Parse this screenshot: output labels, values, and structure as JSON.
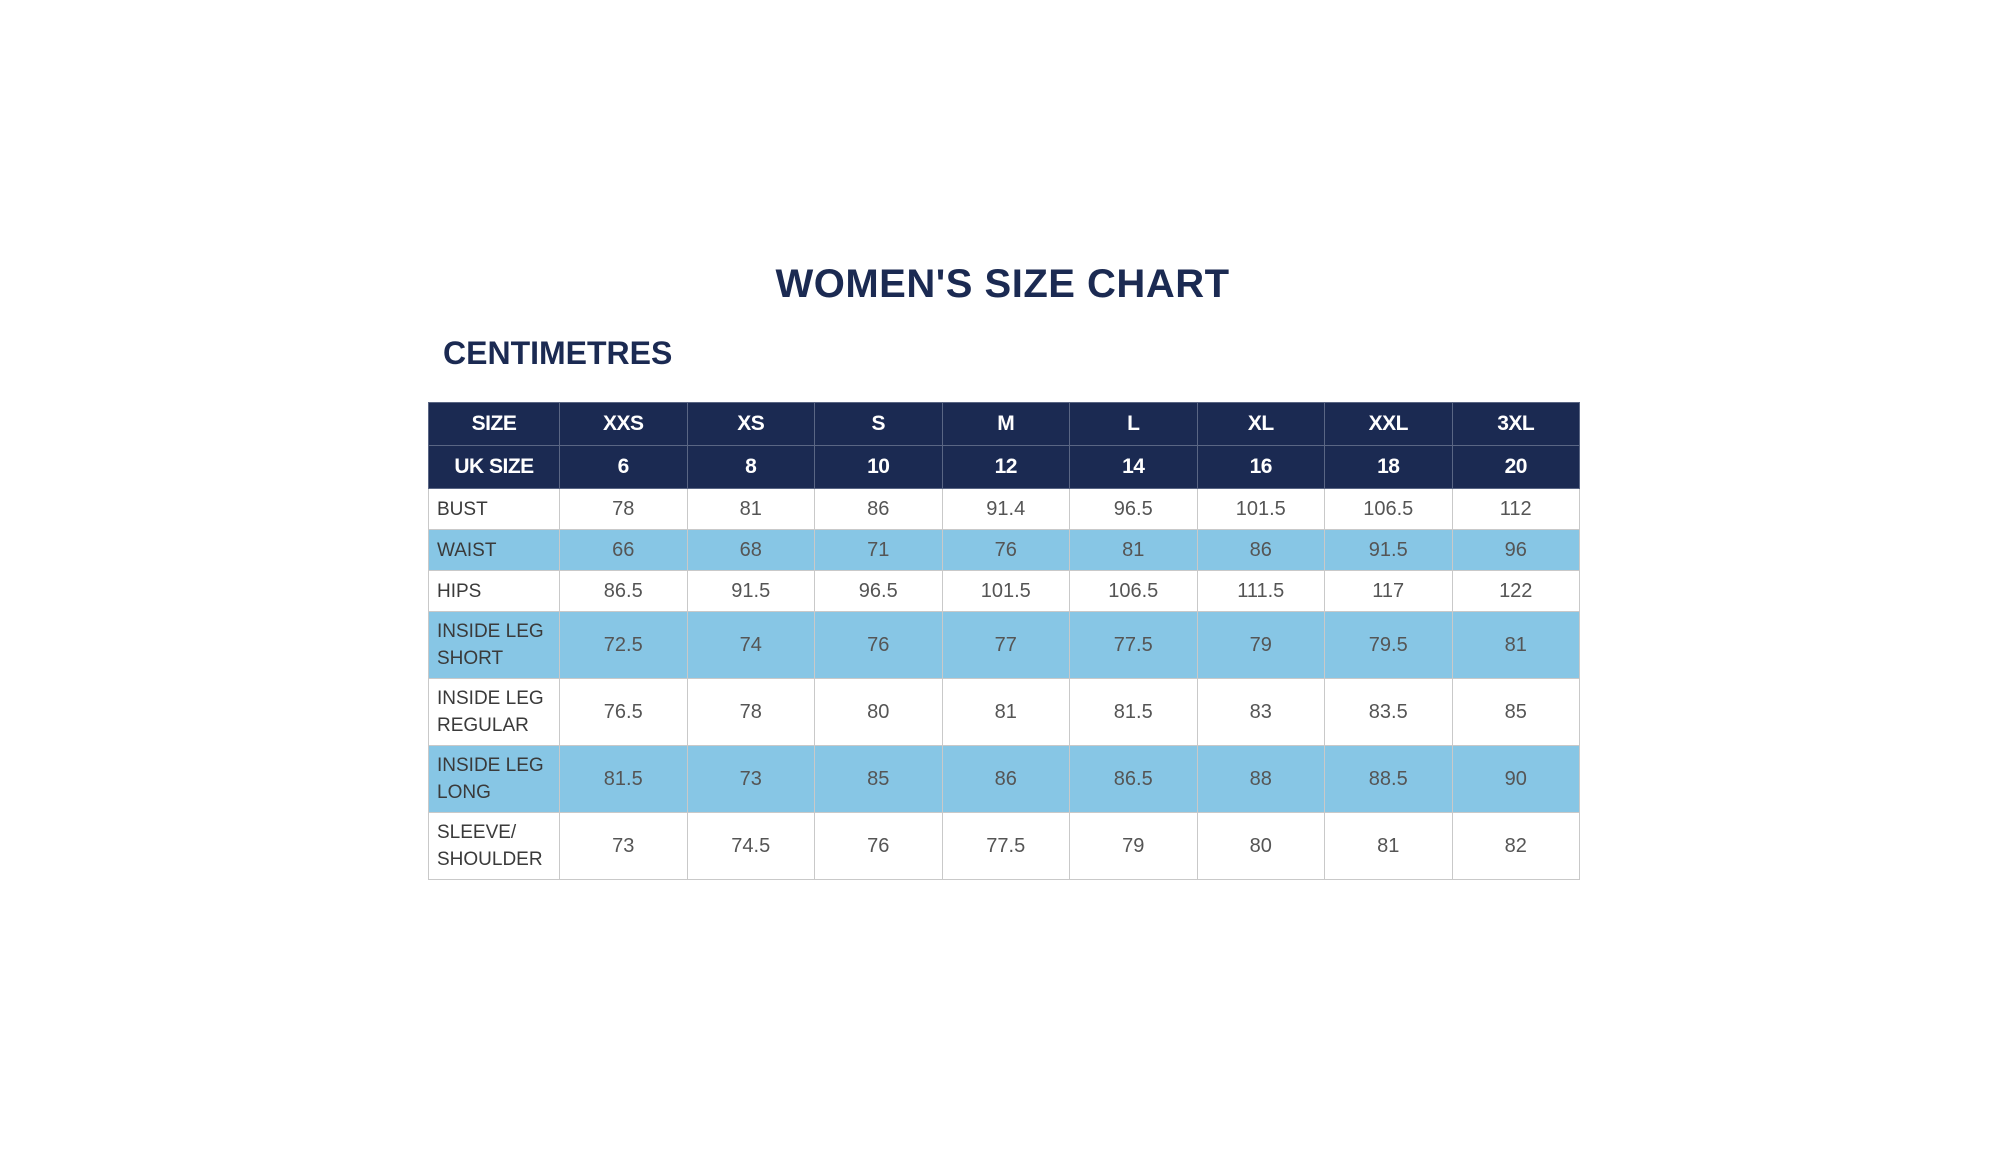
{
  "title": "WOMEN'S SIZE CHART",
  "units_heading": "CENTIMETRES",
  "colors": {
    "header_bg": "#1b2a52",
    "shaded_row": "#87c6e5",
    "title_text": "#1b2a52"
  },
  "table": {
    "header_rows": [
      {
        "label": "SIZE",
        "values": [
          "XXS",
          "XS",
          "S",
          "M",
          "L",
          "XL",
          "XXL",
          "3XL"
        ]
      },
      {
        "label": "UK SIZE",
        "values": [
          "6",
          "8",
          "10",
          "12",
          "14",
          "16",
          "18",
          "20"
        ]
      }
    ],
    "rows": [
      {
        "label_line1": "BUST",
        "label_line2": "",
        "shaded": false,
        "values": [
          "78",
          "81",
          "86",
          "91.4",
          "96.5",
          "101.5",
          "106.5",
          "112"
        ]
      },
      {
        "label_line1": "WAIST",
        "label_line2": "",
        "shaded": true,
        "values": [
          "66",
          "68",
          "71",
          "76",
          "81",
          "86",
          "91.5",
          "96"
        ]
      },
      {
        "label_line1": "HIPS",
        "label_line2": "",
        "shaded": false,
        "values": [
          "86.5",
          "91.5",
          "96.5",
          "101.5",
          "106.5",
          "111.5",
          "117",
          "122"
        ]
      },
      {
        "label_line1": "INSIDE LEG",
        "label_line2": "SHORT",
        "shaded": true,
        "values": [
          "72.5",
          "74",
          "76",
          "77",
          "77.5",
          "79",
          "79.5",
          "81"
        ]
      },
      {
        "label_line1": "INSIDE LEG",
        "label_line2": "REGULAR",
        "shaded": false,
        "values": [
          "76.5",
          "78",
          "80",
          "81",
          "81.5",
          "83",
          "83.5",
          "85"
        ]
      },
      {
        "label_line1": "INSIDE LEG",
        "label_line2": "LONG",
        "shaded": true,
        "values": [
          "81.5",
          "73",
          "85",
          "86",
          "86.5",
          "88",
          "88.5",
          "90"
        ]
      },
      {
        "label_line1": "SLEEVE/",
        "label_line2": "SHOULDER",
        "shaded": false,
        "values": [
          "73",
          "74.5",
          "76",
          "77.5",
          "79",
          "80",
          "81",
          "82"
        ]
      }
    ]
  }
}
